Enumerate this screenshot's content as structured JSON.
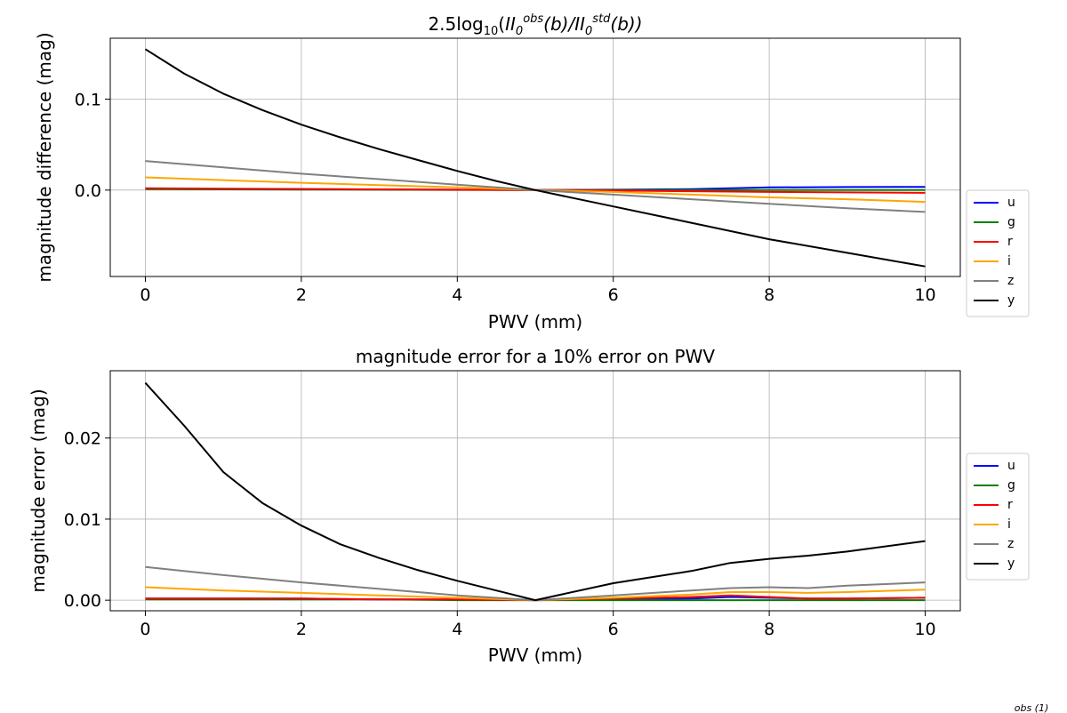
{
  "chart_data": [
    {
      "type": "line",
      "title": "2.5log10(II0obs(b)/II0std(b))",
      "title_parts": {
        "prefix": "2.5log",
        "sub10": "10",
        "open": "(",
        "ii1": "II",
        "sub1": "0",
        "sup1": "obs",
        "b1": "(b)/",
        "ii2": "II",
        "sub2": "0",
        "sup2": "std",
        "b2": "(b))"
      },
      "xlabel": "PWV (mm)",
      "ylabel": "magnitude difference (mag)",
      "xlim": [
        -0.45,
        10.45
      ],
      "ylim": [
        -0.095,
        0.167
      ],
      "xticks": [
        0,
        2,
        4,
        6,
        8,
        10
      ],
      "xtick_labels": [
        "0",
        "2",
        "4",
        "6",
        "8",
        "10"
      ],
      "yticks": [
        0.0,
        0.1
      ],
      "ytick_labels": [
        "0.0",
        "0.1"
      ],
      "grid": true,
      "legend_position": "outside-right",
      "series": [
        {
          "name": "u",
          "color": "#0000ff",
          "x": [
            0,
            1,
            2,
            3,
            4,
            5,
            6,
            7,
            8,
            9,
            10
          ],
          "y": [
            0.0015,
            0.0012,
            0.001,
            0.0007,
            0.0004,
            0.0,
            0.0004,
            0.0011,
            0.003,
            0.0033,
            0.0035
          ]
        },
        {
          "name": "g",
          "color": "#008000",
          "x": [
            0,
            1,
            2,
            3,
            4,
            5,
            6,
            7,
            8,
            9,
            10
          ],
          "y": [
            0.001,
            0.0008,
            0.0006,
            0.0004,
            0.0002,
            0.0,
            0.0,
            0.0,
            0.0,
            0.0,
            0.0
          ]
        },
        {
          "name": "r",
          "color": "#ff0000",
          "x": [
            0,
            1,
            2,
            3,
            4,
            5,
            6,
            7,
            8,
            9,
            10
          ],
          "y": [
            0.002,
            0.0016,
            0.0012,
            0.0008,
            0.0004,
            0.0,
            -0.0006,
            -0.0012,
            -0.002,
            -0.0025,
            -0.003
          ]
        },
        {
          "name": "i",
          "color": "#ffa500",
          "x": [
            0,
            1,
            2,
            3,
            4,
            5,
            6,
            7,
            8,
            9,
            10
          ],
          "y": [
            0.014,
            0.011,
            0.008,
            0.0055,
            0.003,
            0.0,
            -0.002,
            -0.005,
            -0.008,
            -0.01,
            -0.013
          ]
        },
        {
          "name": "z",
          "color": "#808080",
          "x": [
            0,
            1,
            2,
            3,
            4,
            5,
            6,
            7,
            8,
            9,
            10
          ],
          "y": [
            0.032,
            0.025,
            0.018,
            0.012,
            0.006,
            0.0,
            -0.005,
            -0.01,
            -0.015,
            -0.02,
            -0.024
          ]
        },
        {
          "name": "y",
          "color": "#000000",
          "x": [
            0,
            0.5,
            1,
            1.5,
            2,
            2.5,
            3,
            3.5,
            4,
            4.5,
            5,
            6,
            7,
            8,
            9,
            10
          ],
          "y": [
            0.155,
            0.128,
            0.106,
            0.088,
            0.072,
            0.058,
            0.045,
            0.033,
            0.021,
            0.01,
            0.0,
            -0.018,
            -0.036,
            -0.054,
            -0.069,
            -0.084
          ]
        }
      ]
    },
    {
      "type": "line",
      "title": "magnitude error for a 10% error on PWV",
      "xlabel": "PWV (mm)",
      "ylabel": "magnitude error (mag)",
      "xlim": [
        -0.45,
        10.45
      ],
      "ylim": [
        -0.0013,
        0.0283
      ],
      "xticks": [
        0,
        2,
        4,
        6,
        8,
        10
      ],
      "xtick_labels": [
        "0",
        "2",
        "4",
        "6",
        "8",
        "10"
      ],
      "yticks": [
        0.0,
        0.01,
        0.02
      ],
      "ytick_labels": [
        "0.00",
        "0.01",
        "0.02"
      ],
      "grid": true,
      "legend_position": "outside-right",
      "series": [
        {
          "name": "u",
          "color": "#0000ff",
          "x": [
            0,
            1,
            2,
            3,
            4,
            5,
            6,
            7,
            7.5,
            8,
            8.5,
            9,
            10
          ],
          "y": [
            0.0002,
            0.0002,
            0.0002,
            0.0001,
            0.0001,
            0.0,
            0.0001,
            0.0002,
            0.0004,
            0.0003,
            0.0002,
            0.0002,
            0.0003
          ]
        },
        {
          "name": "g",
          "color": "#008000",
          "x": [
            0,
            1,
            2,
            3,
            4,
            5,
            6,
            7,
            8,
            9,
            10
          ],
          "y": [
            0.0001,
            0.0001,
            0.0001,
            0.0001,
            0.0,
            0.0,
            0.0,
            0.0,
            0.0,
            0.0,
            0.0
          ]
        },
        {
          "name": "r",
          "color": "#ff0000",
          "x": [
            0,
            1,
            2,
            3,
            4,
            5,
            6,
            7,
            7.5,
            8,
            8.5,
            9,
            10
          ],
          "y": [
            0.0002,
            0.0002,
            0.0002,
            0.0001,
            0.0001,
            0.0,
            0.0002,
            0.0004,
            0.0006,
            0.0004,
            0.0002,
            0.0002,
            0.0003
          ]
        },
        {
          "name": "i",
          "color": "#ffa500",
          "x": [
            0,
            1,
            2,
            3,
            4,
            5,
            6,
            7,
            7.5,
            8,
            8.5,
            9,
            10
          ],
          "y": [
            0.0016,
            0.0012,
            0.0009,
            0.0006,
            0.0003,
            0.0,
            0.0003,
            0.0007,
            0.001,
            0.001,
            0.0009,
            0.001,
            0.0013
          ]
        },
        {
          "name": "z",
          "color": "#808080",
          "x": [
            0,
            1,
            2,
            3,
            4,
            5,
            6,
            7,
            7.5,
            8,
            8.5,
            9,
            10
          ],
          "y": [
            0.0041,
            0.0031,
            0.0022,
            0.0014,
            0.0006,
            0.0,
            0.0006,
            0.0012,
            0.0015,
            0.0016,
            0.0015,
            0.0018,
            0.0022
          ]
        },
        {
          "name": "y",
          "color": "#000000",
          "x": [
            0,
            0.5,
            1,
            1.5,
            2,
            2.5,
            3,
            3.5,
            4,
            4.5,
            5,
            6,
            7,
            7.5,
            8,
            8.5,
            9,
            10
          ],
          "y": [
            0.0268,
            0.0215,
            0.0158,
            0.012,
            0.0092,
            0.0069,
            0.0052,
            0.0037,
            0.0024,
            0.0012,
            0.0,
            0.0021,
            0.0036,
            0.0046,
            0.0051,
            0.0055,
            0.006,
            0.0073
          ]
        }
      ]
    }
  ],
  "footer_fragment": "obs (1)"
}
